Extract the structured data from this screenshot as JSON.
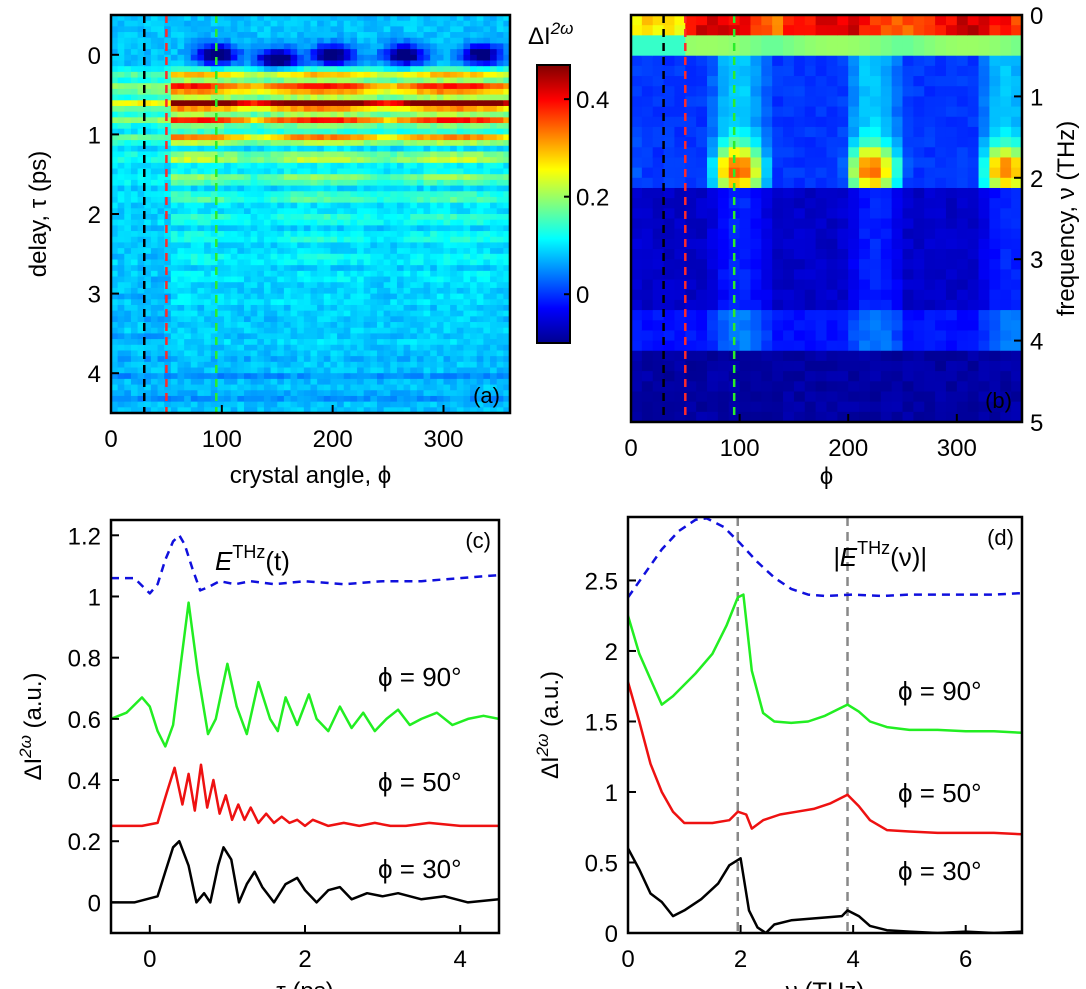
{
  "chart_data": [
    {
      "id": "a",
      "type": "heatmap",
      "panel_label": "(a)",
      "xlabel": "crystal angle, ϕ",
      "ylabel": "delay, τ (ps)",
      "xlim": [
        0,
        360
      ],
      "ylim": [
        -0.5,
        4.5
      ],
      "y_reversed": true,
      "xticks": [
        0,
        100,
        200,
        300
      ],
      "yticks": [
        0,
        1,
        2,
        3,
        4
      ],
      "markers": [
        {
          "x": 30,
          "color": "#000000"
        },
        {
          "x": 50,
          "color": "#ff2a2a"
        },
        {
          "x": 95,
          "color": "#2aee2a"
        }
      ],
      "delay_rows": [
        {
          "tau": 0.25,
          "level": 0.18
        },
        {
          "tau": 0.42,
          "level": 0.3
        },
        {
          "tau": 0.62,
          "level": 0.4
        },
        {
          "tau": 0.82,
          "level": 0.26
        },
        {
          "tau": 1.05,
          "level": 0.22
        },
        {
          "tau": 1.3,
          "level": 0.16
        },
        {
          "tau": 1.55,
          "level": 0.13
        },
        {
          "tau": 1.8,
          "level": 0.1
        },
        {
          "tau": 2.05,
          "level": 0.08
        },
        {
          "tau": 2.3,
          "level": 0.07
        },
        {
          "tau": 2.55,
          "level": 0.06
        },
        {
          "tau": 2.8,
          "level": 0.05
        },
        {
          "tau": 3.05,
          "level": 0.04
        },
        {
          "tau": 3.3,
          "level": 0.03
        },
        {
          "tau": 3.55,
          "level": 0.03
        },
        {
          "tau": 3.8,
          "level": 0.02
        }
      ],
      "dark_spots": [
        {
          "phi": 95,
          "tau": 0.0
        },
        {
          "phi": 150,
          "tau": 0.05
        },
        {
          "phi": 200,
          "tau": 0.0
        },
        {
          "phi": 265,
          "tau": 0.0
        },
        {
          "phi": 335,
          "tau": 0.0
        }
      ]
    },
    {
      "id": "b",
      "type": "heatmap",
      "panel_label": "(b)",
      "xlabel": "ϕ",
      "ylabel": "frequency, ν (THz)",
      "xlim": [
        0,
        360
      ],
      "ylim": [
        0,
        5
      ],
      "y_reversed": true,
      "xticks": [
        0,
        100,
        200,
        300
      ],
      "yticks": [
        0,
        1,
        2,
        3,
        4,
        5
      ],
      "markers": [
        {
          "x": 30,
          "color": "#000000"
        },
        {
          "x": 50,
          "color": "#ff2a2a"
        },
        {
          "x": 95,
          "color": "#2aee2a"
        }
      ]
    },
    {
      "id": "colorbar",
      "type": "colorbar",
      "label": "ΔI",
      "label_sup": "2ω",
      "range": [
        -0.1,
        0.47
      ],
      "ticks": [
        "0.4",
        "0.2",
        "0"
      ],
      "tick_values": [
        0.4,
        0.2,
        0
      ]
    },
    {
      "id": "c",
      "type": "line",
      "panel_label": "(c)",
      "xlabel": "τ (ps)",
      "ylabel": "ΔI",
      "ylabel_sup": "2ω",
      "ylabel_suffix": " (a.u.)",
      "xlim": [
        -0.5,
        4.5
      ],
      "ylim": [
        -0.1,
        1.25
      ],
      "xticks": [
        0,
        2,
        4
      ],
      "yticks": [
        "0",
        "0.2",
        "0.4",
        "0.6",
        "0.8",
        "1",
        "1.2"
      ],
      "ytick_values": [
        0,
        0.2,
        0.4,
        0.6,
        0.8,
        1,
        1.2
      ],
      "series": [
        {
          "name": "E^THz(t)",
          "label_main": "E",
          "label_sup": "THz",
          "label_tail": "(t)",
          "color": "#1010dd",
          "dash": true,
          "x": [
            -0.5,
            -0.2,
            0,
            0.1,
            0.2,
            0.3,
            0.38,
            0.45,
            0.55,
            0.65,
            0.75,
            0.9,
            1.1,
            1.3,
            1.6,
            2.0,
            2.5,
            3.0,
            3.5,
            4.0,
            4.5
          ],
          "y": [
            1.06,
            1.06,
            1.01,
            1.04,
            1.12,
            1.18,
            1.2,
            1.17,
            1.09,
            1.02,
            1.03,
            1.05,
            1.04,
            1.05,
            1.04,
            1.05,
            1.04,
            1.05,
            1.05,
            1.06,
            1.07
          ]
        },
        {
          "name": "ϕ = 90°",
          "color": "#22ee22",
          "dash": false,
          "x": [
            -0.5,
            -0.3,
            -0.1,
            0,
            0.1,
            0.2,
            0.3,
            0.4,
            0.5,
            0.62,
            0.75,
            0.85,
            1.0,
            1.12,
            1.25,
            1.4,
            1.55,
            1.65,
            1.75,
            1.9,
            2.05,
            2.15,
            2.3,
            2.45,
            2.6,
            2.75,
            2.9,
            3.05,
            3.2,
            3.35,
            3.5,
            3.7,
            3.9,
            4.1,
            4.3,
            4.5
          ],
          "y": [
            0.6,
            0.62,
            0.67,
            0.64,
            0.56,
            0.51,
            0.58,
            0.78,
            0.98,
            0.75,
            0.55,
            0.6,
            0.78,
            0.64,
            0.55,
            0.72,
            0.6,
            0.56,
            0.67,
            0.58,
            0.68,
            0.6,
            0.56,
            0.64,
            0.57,
            0.62,
            0.56,
            0.6,
            0.63,
            0.58,
            0.6,
            0.62,
            0.58,
            0.6,
            0.61,
            0.6
          ]
        },
        {
          "name": "ϕ = 50°",
          "color": "#ee1111",
          "dash": false,
          "x": [
            -0.5,
            -0.1,
            0.1,
            0.22,
            0.32,
            0.42,
            0.5,
            0.58,
            0.66,
            0.74,
            0.82,
            0.9,
            0.98,
            1.06,
            1.14,
            1.22,
            1.3,
            1.4,
            1.5,
            1.6,
            1.7,
            1.8,
            1.9,
            2.0,
            2.1,
            2.3,
            2.5,
            2.7,
            2.9,
            3.1,
            3.3,
            3.6,
            4.0,
            4.5
          ],
          "y": [
            0.25,
            0.25,
            0.26,
            0.36,
            0.44,
            0.32,
            0.42,
            0.3,
            0.45,
            0.31,
            0.4,
            0.29,
            0.35,
            0.27,
            0.32,
            0.27,
            0.31,
            0.26,
            0.29,
            0.26,
            0.28,
            0.26,
            0.27,
            0.25,
            0.27,
            0.25,
            0.26,
            0.25,
            0.26,
            0.25,
            0.25,
            0.26,
            0.25,
            0.25
          ]
        },
        {
          "name": "ϕ = 30°",
          "color": "#000000",
          "dash": false,
          "x": [
            -0.5,
            -0.2,
            0.1,
            0.2,
            0.3,
            0.38,
            0.5,
            0.6,
            0.7,
            0.78,
            0.88,
            0.95,
            1.05,
            1.15,
            1.25,
            1.35,
            1.45,
            1.6,
            1.75,
            1.9,
            2.0,
            2.15,
            2.3,
            2.45,
            2.6,
            2.8,
            3.0,
            3.2,
            3.5,
            3.8,
            4.1,
            4.5
          ],
          "y": [
            0,
            0,
            0.02,
            0.1,
            0.18,
            0.2,
            0.12,
            0,
            0.03,
            0.0,
            0.12,
            0.18,
            0.14,
            0,
            0.06,
            0.1,
            0.05,
            0,
            0.06,
            0.08,
            0.04,
            0,
            0.04,
            0.05,
            0.01,
            0.03,
            0.02,
            0.03,
            0.01,
            0.02,
            0.0,
            0.01
          ]
        }
      ],
      "annotations": [
        "ϕ = 90°",
        "ϕ = 50°",
        "ϕ = 30°"
      ]
    },
    {
      "id": "d",
      "type": "line",
      "panel_label": "(d)",
      "xlabel": "ν (THz)",
      "ylabel": "ΔI",
      "ylabel_sup": "2ω",
      "ylabel_suffix": " (a.u.)",
      "xlim": [
        0,
        7
      ],
      "ylim": [
        0,
        2.95
      ],
      "xticks": [
        0,
        2,
        4,
        6
      ],
      "yticks": [
        "0",
        "0.5",
        "1",
        "1.5",
        "2",
        "2.5"
      ],
      "ytick_values": [
        0,
        0.5,
        1,
        1.5,
        2,
        2.5
      ],
      "vlines": [
        1.95,
        3.9
      ],
      "series": [
        {
          "name": "|E^THz(ν)|",
          "label_main": "|E",
          "label_sup": "THz",
          "label_tail": "(ν)|",
          "color": "#1010dd",
          "dash": true,
          "x": [
            0,
            0.3,
            0.6,
            0.9,
            1.2,
            1.4,
            1.7,
            2.0,
            2.3,
            2.6,
            2.9,
            3.2,
            3.5,
            4.0,
            4.5,
            5.0,
            5.5,
            6.0,
            6.5,
            7.0
          ],
          "y": [
            2.38,
            2.55,
            2.72,
            2.85,
            2.93,
            2.94,
            2.88,
            2.76,
            2.63,
            2.52,
            2.44,
            2.4,
            2.39,
            2.4,
            2.39,
            2.4,
            2.4,
            2.4,
            2.4,
            2.41
          ]
        },
        {
          "name": "ϕ = 90°",
          "color": "#22ee22",
          "dash": false,
          "x": [
            0,
            0.2,
            0.4,
            0.6,
            0.8,
            1.0,
            1.2,
            1.5,
            1.75,
            1.95,
            2.05,
            2.2,
            2.4,
            2.6,
            2.9,
            3.2,
            3.5,
            3.75,
            3.9,
            4.1,
            4.3,
            4.6,
            5.0,
            5.5,
            6.0,
            6.5,
            7.0
          ],
          "y": [
            2.25,
            1.98,
            1.8,
            1.62,
            1.68,
            1.76,
            1.84,
            1.98,
            2.18,
            2.38,
            2.4,
            1.86,
            1.56,
            1.5,
            1.49,
            1.5,
            1.54,
            1.59,
            1.62,
            1.57,
            1.5,
            1.46,
            1.44,
            1.44,
            1.43,
            1.43,
            1.42
          ]
        },
        {
          "name": "ϕ = 50°",
          "color": "#ee1111",
          "dash": false,
          "x": [
            0,
            0.2,
            0.4,
            0.6,
            0.8,
            1.0,
            1.2,
            1.5,
            1.8,
            1.95,
            2.1,
            2.2,
            2.4,
            2.7,
            3.0,
            3.3,
            3.6,
            3.9,
            4.1,
            4.3,
            4.6,
            5.0,
            5.5,
            6.0,
            6.5,
            7.0
          ],
          "y": [
            1.78,
            1.5,
            1.2,
            1.0,
            0.86,
            0.78,
            0.78,
            0.78,
            0.8,
            0.86,
            0.84,
            0.74,
            0.8,
            0.84,
            0.86,
            0.88,
            0.92,
            0.98,
            0.9,
            0.8,
            0.73,
            0.72,
            0.71,
            0.71,
            0.71,
            0.7
          ]
        },
        {
          "name": "ϕ = 30°",
          "color": "#000000",
          "dash": false,
          "x": [
            0,
            0.2,
            0.4,
            0.6,
            0.8,
            1.0,
            1.3,
            1.6,
            1.8,
            2.0,
            2.15,
            2.3,
            2.45,
            2.6,
            2.9,
            3.2,
            3.5,
            3.8,
            3.9,
            4.1,
            4.3,
            4.6,
            5.0,
            5.5,
            6.0,
            6.5,
            7.0
          ],
          "y": [
            0.6,
            0.45,
            0.28,
            0.22,
            0.12,
            0.16,
            0.24,
            0.35,
            0.48,
            0.53,
            0.16,
            0.04,
            0.0,
            0.06,
            0.09,
            0.1,
            0.11,
            0.12,
            0.16,
            0.12,
            0.05,
            0.02,
            0.01,
            0.0,
            0.01,
            0.0,
            0.01
          ]
        }
      ],
      "annotations": [
        "ϕ = 90°",
        "ϕ = 50°",
        "ϕ = 30°"
      ]
    }
  ]
}
